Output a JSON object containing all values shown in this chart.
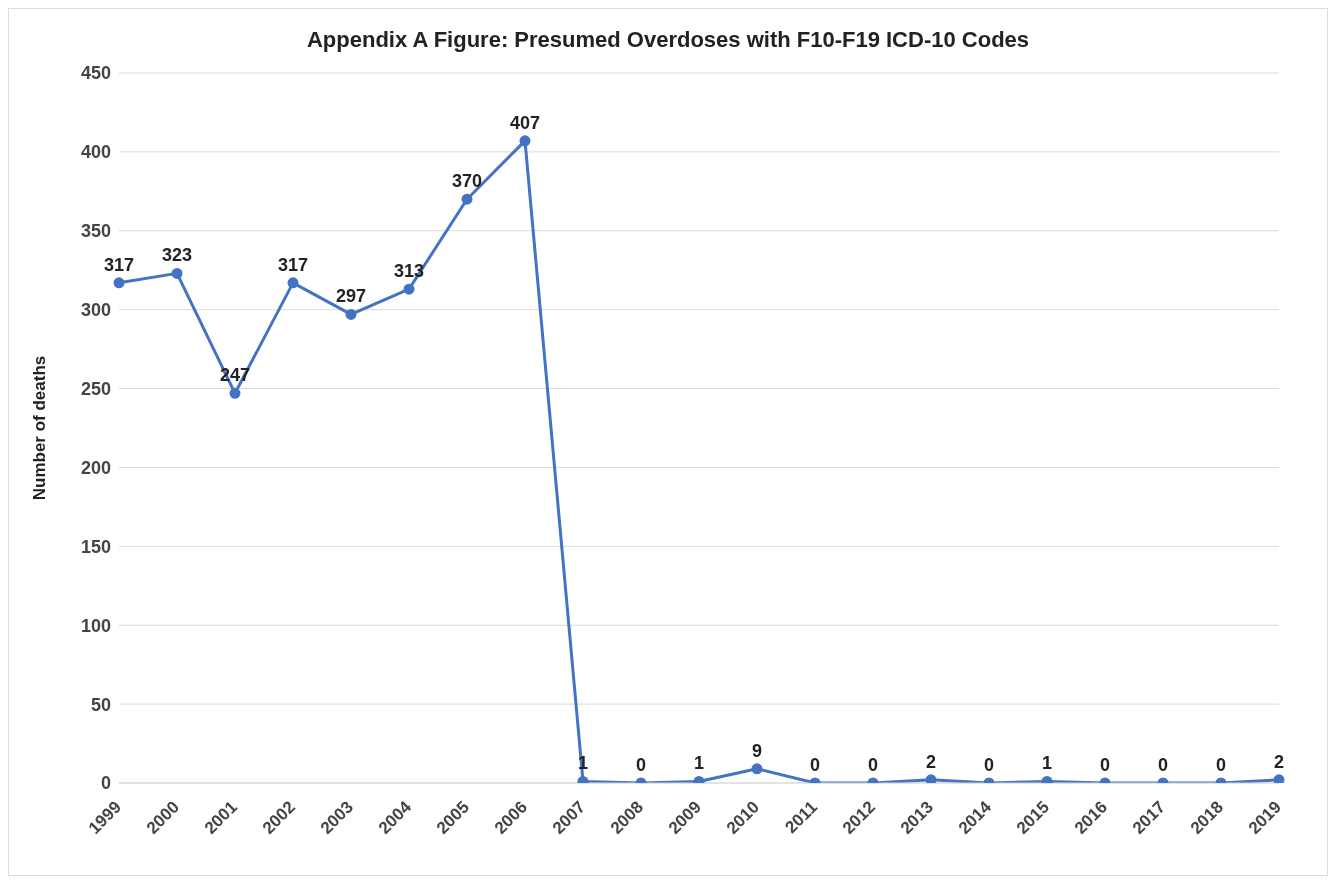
{
  "chart_data": {
    "type": "line",
    "title": "Appendix A Figure: Presumed Overdoses with F10-F19 ICD-10 Codes",
    "ylabel": "Number of deaths",
    "categories": [
      "1999",
      "2000",
      "2001",
      "2002",
      "2003",
      "2004",
      "2005",
      "2006",
      "2007",
      "2008",
      "2009",
      "2010",
      "2011",
      "2012",
      "2013",
      "2014",
      "2015",
      "2016",
      "2017",
      "2018",
      "2019"
    ],
    "values": [
      317,
      323,
      247,
      317,
      297,
      313,
      370,
      407,
      1,
      0,
      1,
      9,
      0,
      0,
      2,
      0,
      1,
      0,
      0,
      0,
      2
    ],
    "color": "#4472c4",
    "ylim": [
      0,
      450
    ],
    "yticks": [
      0,
      50,
      100,
      150,
      200,
      250,
      300,
      350,
      400,
      450
    ],
    "grid": "y",
    "marker": "circle",
    "line_style": "solid",
    "data_labels": true,
    "legend": false
  }
}
